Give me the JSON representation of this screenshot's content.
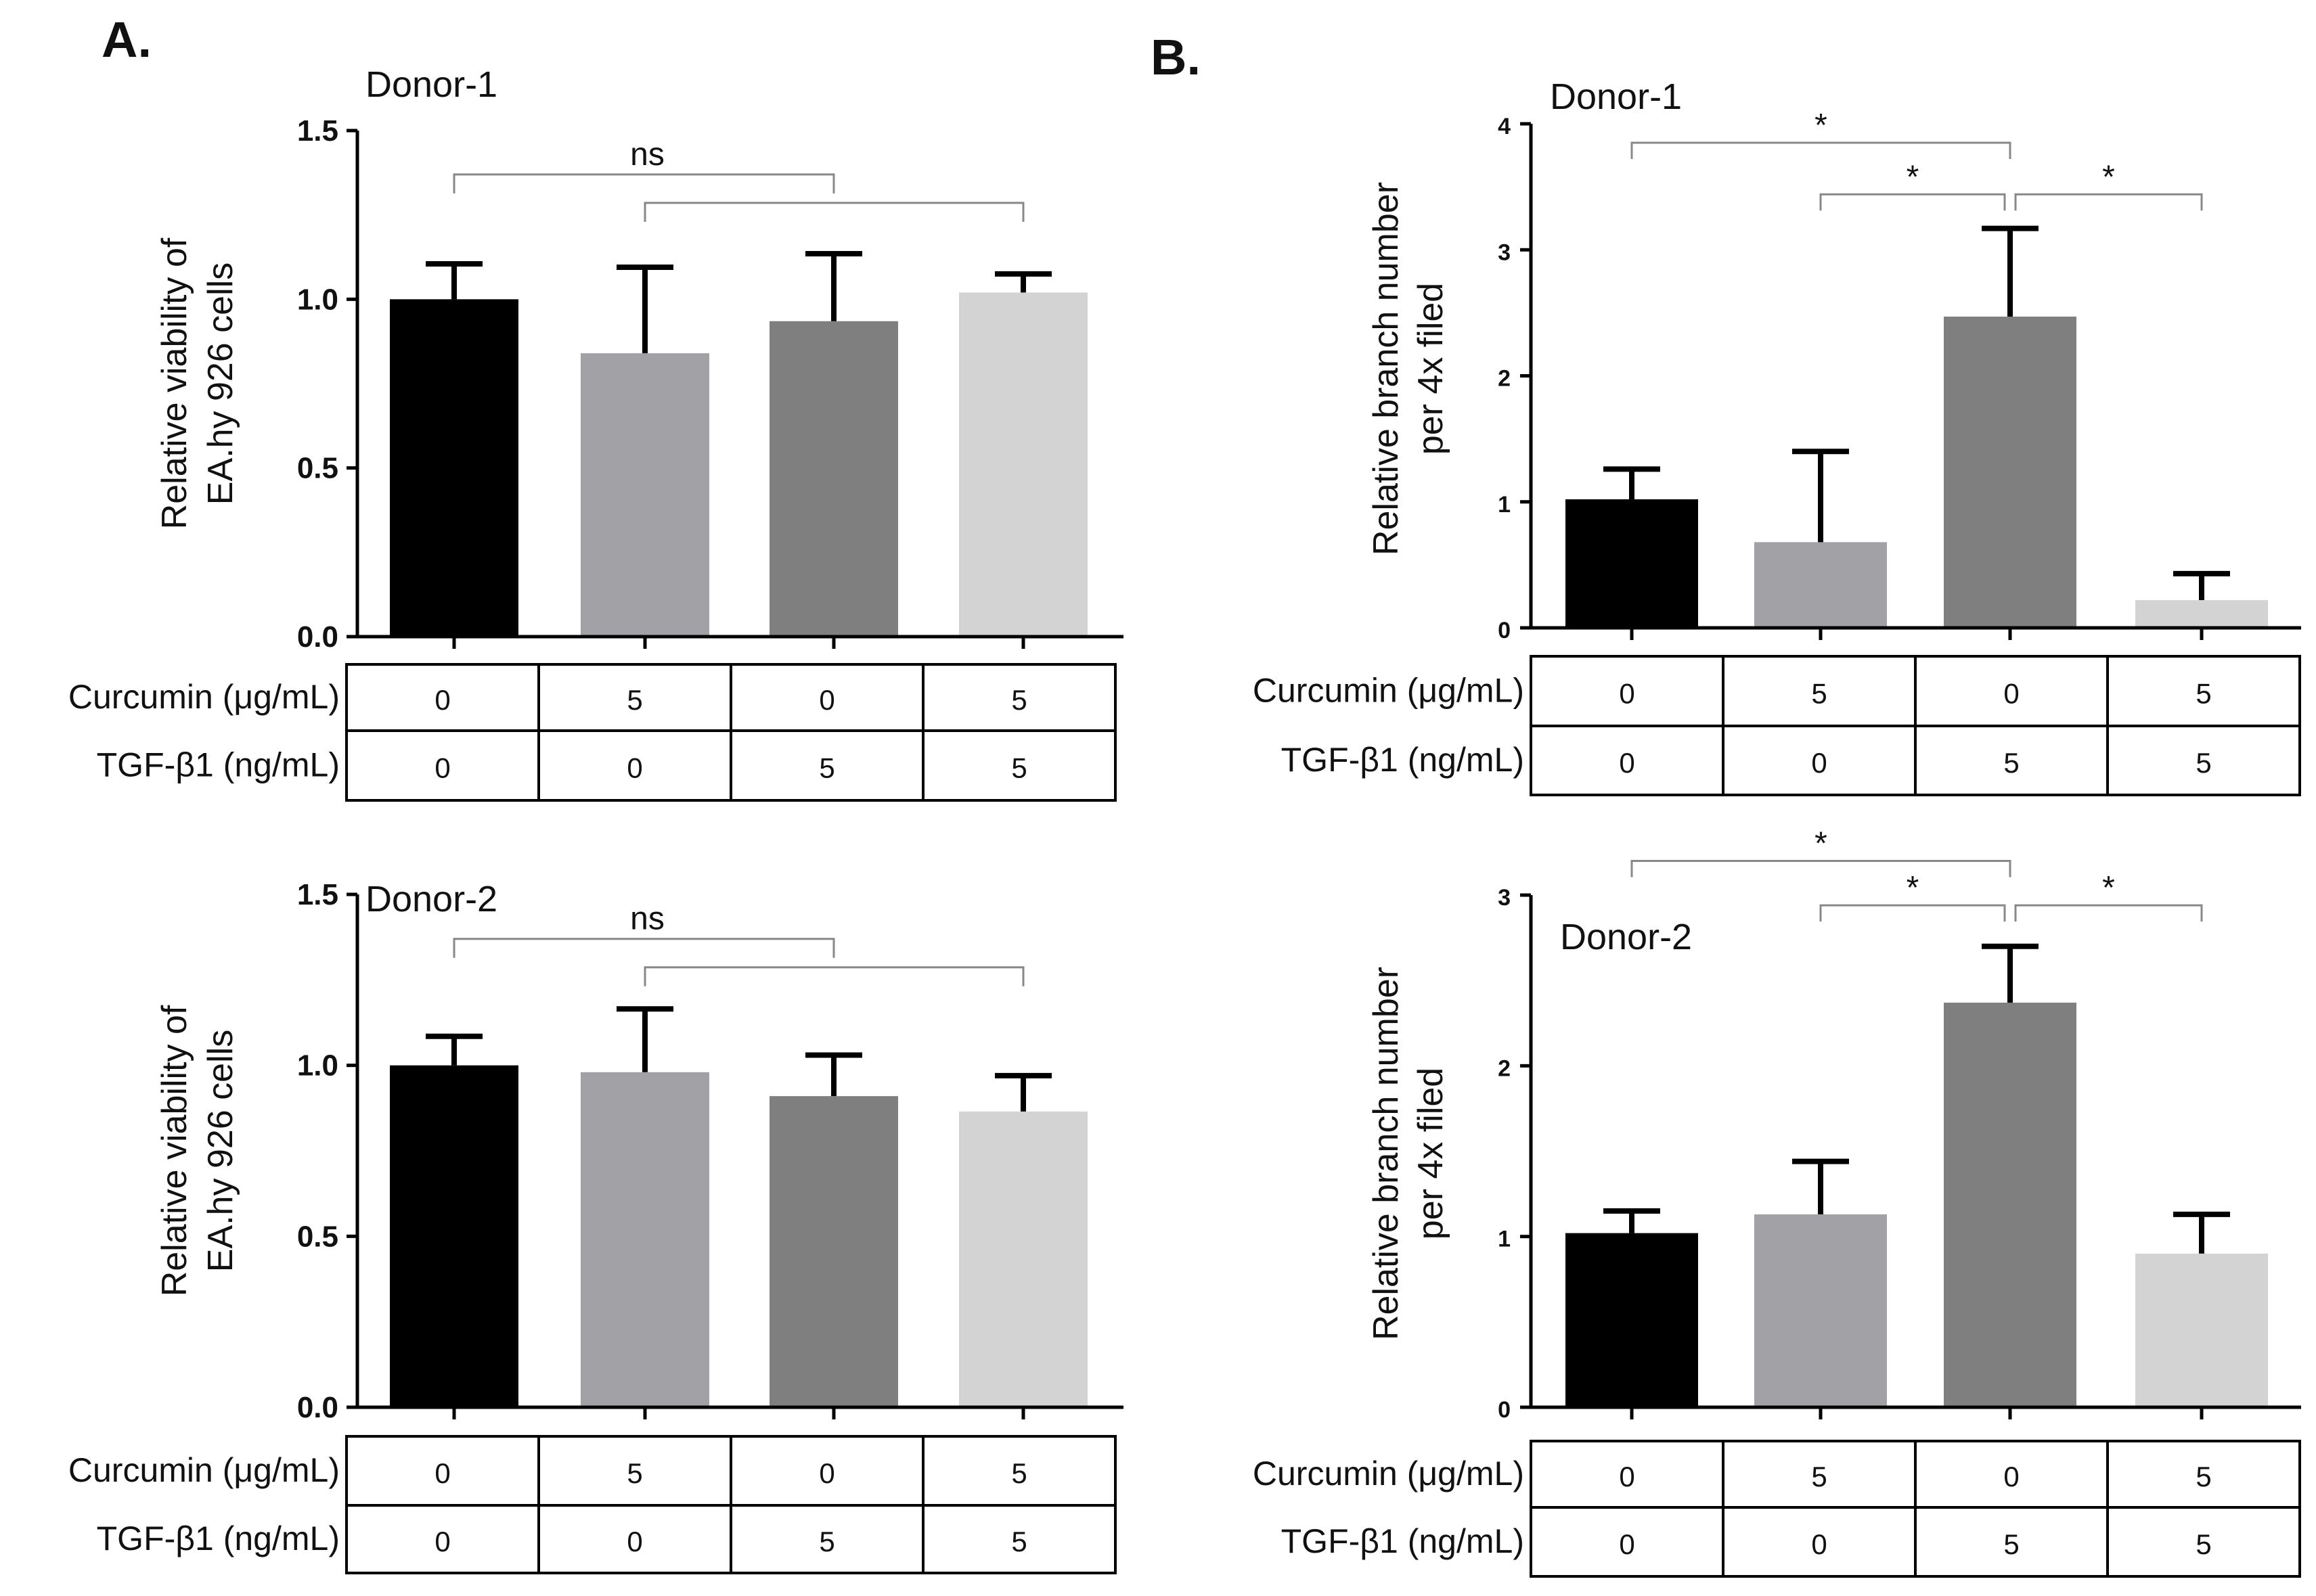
{
  "figure": {
    "panel_a_label": "A.",
    "panel_b_label": "B."
  },
  "chart_data": [
    {
      "id": "a1",
      "type": "bar",
      "title": "Donor-1",
      "ylabel": [
        "Relative viability of",
        "EA.hy 926 cells"
      ],
      "categories": [
        "Curcumin 0 / TGF-β1 0",
        "Curcumin 5 / TGF-β1 0",
        "Curcumin 0 / TGF-β1 5",
        "Curcumin 5 / TGF-β1 5"
      ],
      "values": [
        1.0,
        0.84,
        0.935,
        1.02
      ],
      "errors": [
        0.105,
        0.255,
        0.2,
        0.055
      ],
      "colors": [
        "#000000",
        "#a2a2a6",
        "#7f7f7f",
        "#d3d3d3"
      ],
      "ylim": [
        0,
        1.5
      ],
      "yticks": [
        0,
        0.5,
        1.0,
        1.5
      ],
      "ytick_labels": [
        "0.0",
        "0.5",
        "1.0",
        "1.5"
      ],
      "significance": [
        {
          "type": "group",
          "left": [
            0,
            2
          ],
          "right": [
            1,
            3
          ],
          "level": 1.37,
          "label": "ns"
        }
      ],
      "table": {
        "rows": [
          {
            "label": "Curcumin (μg/mL)",
            "values": [
              "0",
              "5",
              "0",
              "5"
            ]
          },
          {
            "label": "TGF-β1 (ng/mL)",
            "values": [
              "0",
              "0",
              "5",
              "5"
            ]
          }
        ]
      }
    },
    {
      "id": "a2",
      "type": "bar",
      "title": "Donor-2",
      "ylabel": [
        "Relative viability of",
        "EA.hy 926 cells"
      ],
      "categories": [
        "Curcumin 0 / TGF-β1 0",
        "Curcumin 5 / TGF-β1 0",
        "Curcumin 0 / TGF-β1 5",
        "Curcumin 5 / TGF-β1 5"
      ],
      "values": [
        1.0,
        0.98,
        0.91,
        0.865
      ],
      "errors": [
        0.085,
        0.185,
        0.12,
        0.105
      ],
      "colors": [
        "#000000",
        "#a2a2a6",
        "#7f7f7f",
        "#d3d3d3"
      ],
      "ylim": [
        0,
        1.5
      ],
      "yticks": [
        0,
        0.5,
        1.0,
        1.5
      ],
      "ytick_labels": [
        "0.0",
        "0.5",
        "1.0",
        "1.5"
      ],
      "significance": [
        {
          "type": "group",
          "left": [
            0,
            2
          ],
          "right": [
            1,
            3
          ],
          "level": 1.37,
          "label": "ns"
        }
      ],
      "table": {
        "rows": [
          {
            "label": "Curcumin (μg/mL)",
            "values": [
              "0",
              "5",
              "0",
              "5"
            ]
          },
          {
            "label": "TGF-β1 (ng/mL)",
            "values": [
              "0",
              "0",
              "5",
              "5"
            ]
          }
        ]
      }
    },
    {
      "id": "b1",
      "type": "bar",
      "title": "Donor-1",
      "ylabel": [
        "Relative branch number",
        "per 4x filed"
      ],
      "categories": [
        "Curcumin 0 / TGF-β1 0",
        "Curcumin 5 / TGF-β1 0",
        "Curcumin 0 / TGF-β1 5",
        "Curcumin 5 / TGF-β1 5"
      ],
      "values": [
        1.02,
        0.68,
        2.47,
        0.22
      ],
      "errors": [
        0.24,
        0.72,
        0.7,
        0.21
      ],
      "colors": [
        "#000000",
        "#a2a2a6",
        "#7f7f7f",
        "#d3d3d3"
      ],
      "ylim": [
        0,
        4
      ],
      "yticks": [
        0,
        1,
        2,
        3,
        4
      ],
      "ytick_labels": [
        "0",
        "1",
        "2",
        "3",
        "4"
      ],
      "significance": [
        {
          "type": "pair",
          "a": 0,
          "b": 2,
          "level": 3.85,
          "label": "*"
        },
        {
          "type": "pair",
          "a": 1,
          "b": 2,
          "level": 3.44,
          "label": "*"
        },
        {
          "type": "pair",
          "a": 2,
          "b": 3,
          "level": 3.44,
          "label": "*"
        }
      ],
      "table": {
        "rows": [
          {
            "label": "Curcumin (μg/mL)",
            "values": [
              "0",
              "5",
              "0",
              "5"
            ]
          },
          {
            "label": "TGF-β1 (ng/mL)",
            "values": [
              "0",
              "0",
              "5",
              "5"
            ]
          }
        ]
      }
    },
    {
      "id": "b2",
      "type": "bar",
      "title": "Donor-2",
      "ylabel": [
        "Relative branch number",
        "per 4x filed"
      ],
      "categories": [
        "Curcumin 0 / TGF-β1 0",
        "Curcumin 5 / TGF-β1 0",
        "Curcumin 0 / TGF-β1 5",
        "Curcumin 5 / TGF-β1 5"
      ],
      "values": [
        1.02,
        1.13,
        2.37,
        0.9
      ],
      "errors": [
        0.13,
        0.31,
        0.33,
        0.23
      ],
      "colors": [
        "#000000",
        "#a2a2a6",
        "#7f7f7f",
        "#d3d3d3"
      ],
      "ylim": [
        0,
        3
      ],
      "yticks": [
        0,
        1,
        2,
        3
      ],
      "ytick_labels": [
        "0",
        "1",
        "2",
        "3"
      ],
      "significance": [
        {
          "type": "pair",
          "a": 0,
          "b": 2,
          "level": 3.2,
          "label": "*"
        },
        {
          "type": "pair",
          "a": 1,
          "b": 2,
          "level": 2.94,
          "label": "*"
        },
        {
          "type": "pair",
          "a": 2,
          "b": 3,
          "level": 2.94,
          "label": "*"
        }
      ],
      "table": {
        "rows": [
          {
            "label": "Curcumin (μg/mL)",
            "values": [
              "0",
              "5",
              "0",
              "5"
            ]
          },
          {
            "label": "TGF-β1 (ng/mL)",
            "values": [
              "0",
              "0",
              "5",
              "5"
            ]
          }
        ]
      }
    }
  ]
}
